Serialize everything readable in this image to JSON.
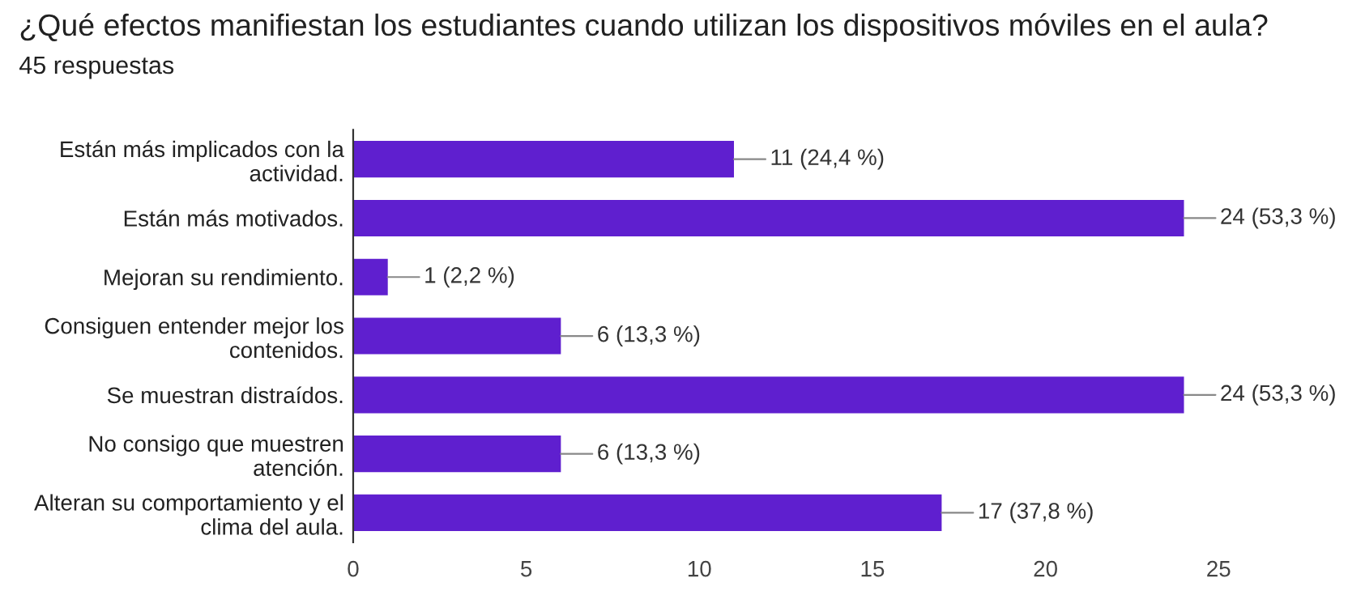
{
  "chart_data": {
    "type": "bar",
    "orientation": "horizontal",
    "title": "¿Qué efectos manifiestan los estudiantes cuando utilizan los dispositivos móviles en el aula?",
    "subtitle": "45 respuestas",
    "categories": [
      "Están más implicados con la\nactividad.",
      "Están más motivados.",
      "Mejoran su rendimiento.",
      "Consiguen entender mejor los\ncontenidos.",
      "Se muestran distraídos.",
      "No consigo que muestren\natención.",
      "Alteran su comportamiento y el\nclima del aula."
    ],
    "values": [
      11,
      24,
      1,
      6,
      24,
      6,
      17
    ],
    "value_labels": [
      "11 (24,4 %)",
      "24 (53,3 %)",
      "1 (2,2 %)",
      "6 (13,3 %)",
      "24 (53,3 %)",
      "6 (13,3 %)",
      "17 (37,8 %)"
    ],
    "color": "#5f1fcf",
    "xlim": [
      0,
      25
    ],
    "xticks": [
      0,
      5,
      10,
      15,
      20,
      25
    ],
    "grid": false
  }
}
